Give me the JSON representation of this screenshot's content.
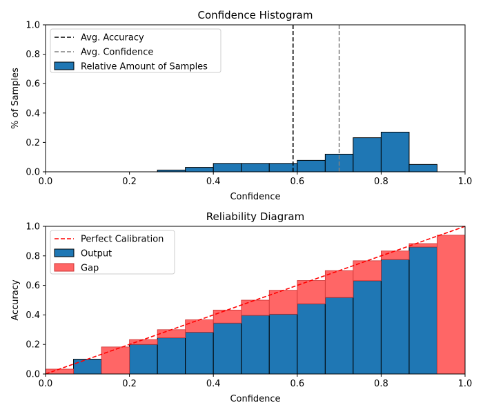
{
  "chart_data": [
    {
      "type": "bar",
      "title": "Confidence Histogram",
      "xlabel": "Confidence",
      "ylabel": "% of Samples",
      "xlim": [
        0,
        1
      ],
      "ylim": [
        0,
        1
      ],
      "xticks": [
        "0.0",
        "0.2",
        "0.4",
        "0.6",
        "0.8",
        "1.0"
      ],
      "yticks": [
        "0.0",
        "0.2",
        "0.4",
        "0.6",
        "0.8",
        "1.0"
      ],
      "grid": false,
      "legend_position": "top-left",
      "bin_edges": [
        0,
        0.0667,
        0.1333,
        0.2,
        0.2667,
        0.3333,
        0.4,
        0.4667,
        0.5333,
        0.6,
        0.6667,
        0.7333,
        0.8,
        0.8667,
        0.9333,
        1.0
      ],
      "series": [
        {
          "name": "Relative Amount of Samples",
          "color": "#1f77b4",
          "values": [
            0,
            0,
            0,
            0,
            0.012,
            0.03,
            0.057,
            0.057,
            0.057,
            0.078,
            0.12,
            0.232,
            0.27,
            0.05,
            0
          ]
        }
      ],
      "vlines": [
        {
          "name": "Avg. Accuracy",
          "x": 0.59,
          "color": "#000000",
          "style": "dashed"
        },
        {
          "name": "Avg. Confidence",
          "x": 0.7,
          "color": "#808080",
          "style": "dashed"
        }
      ],
      "legend": [
        "Avg. Accuracy",
        "Avg. Confidence",
        "Relative Amount of Samples"
      ]
    },
    {
      "type": "bar",
      "title": "Reliability Diagram",
      "xlabel": "Confidence",
      "ylabel": "Accuracy",
      "xlim": [
        0,
        1
      ],
      "ylim": [
        0,
        1
      ],
      "xticks": [
        "0.0",
        "0.2",
        "0.4",
        "0.6",
        "0.8",
        "1.0"
      ],
      "yticks": [
        "0.0",
        "0.2",
        "0.4",
        "0.6",
        "0.8",
        "1.0"
      ],
      "grid": false,
      "legend_position": "top-left",
      "bin_edges": [
        0,
        0.0667,
        0.1333,
        0.2,
        0.2667,
        0.3333,
        0.4,
        0.4667,
        0.5333,
        0.6,
        0.6667,
        0.7333,
        0.8,
        0.8667,
        0.9333,
        1.0
      ],
      "series": [
        {
          "name": "Output",
          "color": "#1f77b4",
          "values": [
            0.03,
            0.1,
            0,
            0.2,
            0.245,
            0.283,
            0.345,
            0.397,
            0.405,
            0.475,
            0.518,
            0.632,
            0.775,
            0.86,
            0
          ]
        },
        {
          "name": "Gap",
          "color": "#ff6666",
          "bottom": [
            0,
            0.1,
            0,
            0.2,
            0.245,
            0.283,
            0.345,
            0.397,
            0.405,
            0.475,
            0.518,
            0.632,
            0.775,
            0.86,
            0
          ],
          "top": [
            0.033,
            0.1,
            0.183,
            0.233,
            0.3,
            0.367,
            0.433,
            0.5,
            0.567,
            0.633,
            0.7,
            0.767,
            0.833,
            0.883,
            0.94
          ]
        }
      ],
      "reference_line": {
        "name": "Perfect Calibration",
        "x": [
          0,
          1
        ],
        "y": [
          0,
          1
        ],
        "color": "#ff0000",
        "style": "dashed"
      },
      "legend": [
        "Perfect Calibration",
        "Output",
        "Gap"
      ]
    }
  ]
}
